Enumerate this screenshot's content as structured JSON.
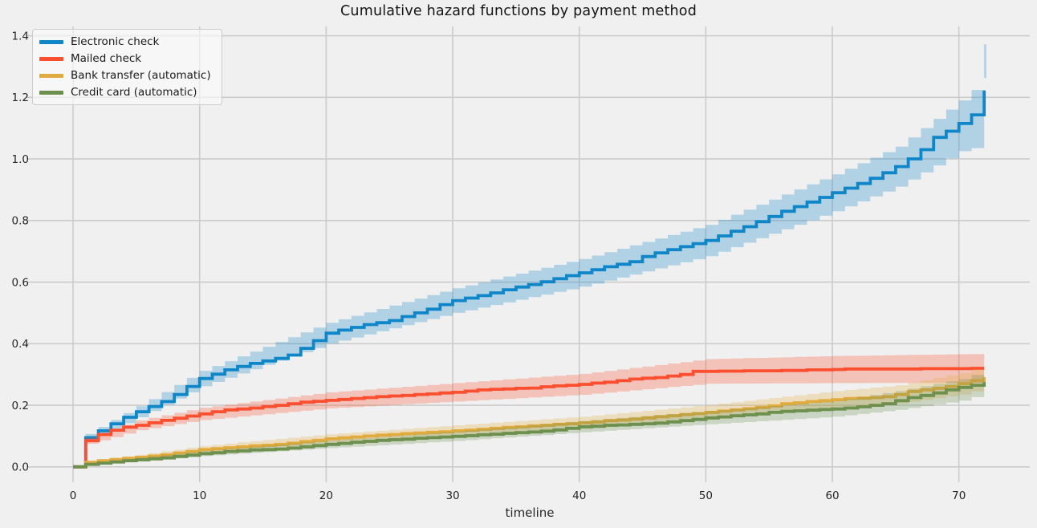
{
  "chart_data": {
    "type": "line",
    "subtype": "step-post-cumulative-hazard",
    "title": "Cumulative hazard functions by payment method",
    "xlabel": "timeline",
    "ylabel": "",
    "grid": true,
    "legend_position": "upper left",
    "xlim": [
      -3.65,
      75.6
    ],
    "ylim": [
      -0.05,
      1.43
    ],
    "xticks": [
      0,
      10,
      20,
      30,
      40,
      50,
      60,
      70
    ],
    "xtick_labels": [
      "0",
      "10",
      "20",
      "30",
      "40",
      "50",
      "60",
      "70"
    ],
    "yticks": [
      0.0,
      0.2,
      0.4,
      0.6,
      0.8,
      1.0,
      1.2,
      1.4
    ],
    "ytick_labels": [
      "0.0",
      "0.2",
      "0.4",
      "0.6",
      "0.8",
      "1.0",
      "1.2",
      "1.4"
    ],
    "background_color": "#f0f0f0",
    "gridline_color": "#cbcbcb",
    "tick_color": "#262626",
    "x": [
      0,
      1,
      2,
      3,
      4,
      5,
      6,
      7,
      8,
      9,
      10,
      11,
      12,
      13,
      14,
      15,
      16,
      17,
      18,
      19,
      20,
      21,
      22,
      23,
      24,
      25,
      26,
      27,
      28,
      29,
      30,
      31,
      32,
      33,
      34,
      35,
      36,
      37,
      38,
      39,
      40,
      41,
      42,
      43,
      44,
      45,
      46,
      47,
      48,
      49,
      50,
      51,
      52,
      53,
      54,
      55,
      56,
      57,
      58,
      59,
      60,
      61,
      62,
      63,
      64,
      65,
      66,
      67,
      68,
      69,
      70,
      71,
      72
    ],
    "series": [
      {
        "name": "Electronic check",
        "color": "#0f86c8",
        "band_opacity": 0.28,
        "values": [
          0,
          0.095,
          0.117,
          0.14,
          0.161,
          0.179,
          0.196,
          0.212,
          0.235,
          0.261,
          0.287,
          0.301,
          0.315,
          0.326,
          0.336,
          0.344,
          0.352,
          0.363,
          0.385,
          0.41,
          0.434,
          0.444,
          0.453,
          0.462,
          0.468,
          0.475,
          0.488,
          0.5,
          0.512,
          0.527,
          0.54,
          0.548,
          0.556,
          0.565,
          0.575,
          0.584,
          0.592,
          0.601,
          0.611,
          0.621,
          0.63,
          0.64,
          0.65,
          0.658,
          0.666,
          0.683,
          0.695,
          0.705,
          0.715,
          0.725,
          0.735,
          0.75,
          0.765,
          0.78,
          0.796,
          0.813,
          0.83,
          0.845,
          0.86,
          0.875,
          0.89,
          0.905,
          0.92,
          0.937,
          0.955,
          0.975,
          1.0,
          1.03,
          1.07,
          1.09,
          1.115,
          1.143,
          1.222
        ],
        "ci": {
          "t": [
            0,
            1,
            5,
            10,
            20,
            30,
            40,
            50,
            60,
            65,
            70,
            71,
            72
          ],
          "lower": [
            0,
            0.083,
            0.161,
            0.262,
            0.4,
            0.5,
            0.585,
            0.684,
            0.83,
            0.91,
            1.025,
            1.035,
            1.043
          ],
          "upper": [
            0,
            0.107,
            0.197,
            0.312,
            0.468,
            0.58,
            0.675,
            0.786,
            0.95,
            1.04,
            1.19,
            1.224,
            1.263
          ],
          "final_upper_spike": 1.372
        }
      },
      {
        "name": "Mailed check",
        "color": "#fc4f30",
        "band_opacity": 0.28,
        "values": [
          0,
          0.085,
          0.105,
          0.119,
          0.129,
          0.135,
          0.143,
          0.151,
          0.158,
          0.165,
          0.172,
          0.179,
          0.185,
          0.188,
          0.191,
          0.196,
          0.2,
          0.205,
          0.21,
          0.213,
          0.216,
          0.219,
          0.222,
          0.225,
          0.228,
          0.23,
          0.232,
          0.235,
          0.237,
          0.24,
          0.242,
          0.246,
          0.25,
          0.252,
          0.253,
          0.255,
          0.256,
          0.26,
          0.263,
          0.265,
          0.268,
          0.272,
          0.275,
          0.28,
          0.285,
          0.288,
          0.29,
          0.295,
          0.3,
          0.31,
          0.31,
          0.311,
          0.311,
          0.312,
          0.312,
          0.312,
          0.313,
          0.313,
          0.315,
          0.315,
          0.316,
          0.318,
          0.318,
          0.318,
          0.318,
          0.318,
          0.318,
          0.319,
          0.319,
          0.319,
          0.319,
          0.32,
          0.32
        ],
        "ci": {
          "t": [
            0,
            1,
            5,
            10,
            20,
            30,
            40,
            50,
            60,
            72
          ],
          "lower": [
            0,
            0.075,
            0.119,
            0.152,
            0.19,
            0.212,
            0.234,
            0.27,
            0.272,
            0.273
          ],
          "upper": [
            0,
            0.095,
            0.151,
            0.192,
            0.242,
            0.272,
            0.302,
            0.35,
            0.36,
            0.367
          ]
        }
      },
      {
        "name": "Bank transfer (automatic)",
        "color": "#e2ab3d",
        "band_opacity": 0.28,
        "values": [
          0,
          0.015,
          0.02,
          0.024,
          0.028,
          0.031,
          0.035,
          0.039,
          0.045,
          0.05,
          0.056,
          0.059,
          0.062,
          0.065,
          0.068,
          0.07,
          0.073,
          0.077,
          0.082,
          0.086,
          0.091,
          0.094,
          0.097,
          0.1,
          0.103,
          0.105,
          0.108,
          0.11,
          0.112,
          0.114,
          0.117,
          0.119,
          0.122,
          0.125,
          0.128,
          0.13,
          0.133,
          0.135,
          0.138,
          0.14,
          0.143,
          0.146,
          0.15,
          0.152,
          0.155,
          0.159,
          0.163,
          0.166,
          0.17,
          0.173,
          0.177,
          0.181,
          0.185,
          0.189,
          0.193,
          0.198,
          0.205,
          0.208,
          0.212,
          0.215,
          0.218,
          0.222,
          0.223,
          0.225,
          0.228,
          0.235,
          0.245,
          0.25,
          0.255,
          0.261,
          0.27,
          0.28,
          0.291
        ],
        "ci": {
          "t": [
            0,
            1,
            5,
            10,
            20,
            30,
            40,
            50,
            60,
            65,
            70,
            72
          ],
          "lower": [
            0,
            0.01,
            0.023,
            0.044,
            0.076,
            0.099,
            0.123,
            0.153,
            0.19,
            0.205,
            0.235,
            0.255
          ],
          "upper": [
            0,
            0.02,
            0.039,
            0.068,
            0.106,
            0.135,
            0.163,
            0.201,
            0.246,
            0.265,
            0.305,
            0.327
          ]
        }
      },
      {
        "name": "Credit card (automatic)",
        "color": "#6d904f",
        "band_opacity": 0.28,
        "values": [
          0,
          0.008,
          0.012,
          0.016,
          0.02,
          0.023,
          0.026,
          0.029,
          0.034,
          0.038,
          0.043,
          0.046,
          0.05,
          0.052,
          0.055,
          0.056,
          0.058,
          0.061,
          0.065,
          0.069,
          0.073,
          0.076,
          0.08,
          0.083,
          0.086,
          0.088,
          0.09,
          0.093,
          0.095,
          0.097,
          0.099,
          0.101,
          0.104,
          0.106,
          0.109,
          0.111,
          0.113,
          0.116,
          0.12,
          0.125,
          0.13,
          0.132,
          0.135,
          0.136,
          0.138,
          0.14,
          0.142,
          0.146,
          0.15,
          0.154,
          0.159,
          0.162,
          0.166,
          0.169,
          0.172,
          0.177,
          0.18,
          0.182,
          0.184,
          0.186,
          0.188,
          0.191,
          0.195,
          0.2,
          0.205,
          0.215,
          0.225,
          0.232,
          0.24,
          0.25,
          0.258,
          0.265,
          0.275
        ],
        "ci": {
          "t": [
            0,
            1,
            5,
            10,
            20,
            30,
            40,
            50,
            60,
            65,
            70,
            72
          ],
          "lower": [
            0,
            0.005,
            0.017,
            0.035,
            0.061,
            0.084,
            0.112,
            0.138,
            0.163,
            0.185,
            0.215,
            0.238
          ],
          "upper": [
            0,
            0.012,
            0.03,
            0.052,
            0.086,
            0.115,
            0.149,
            0.181,
            0.214,
            0.246,
            0.285,
            0.312
          ]
        }
      }
    ]
  }
}
